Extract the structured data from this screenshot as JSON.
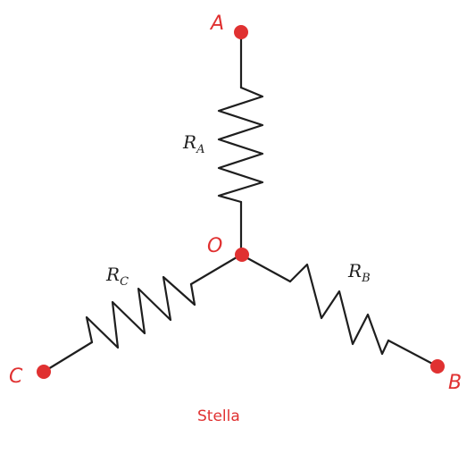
{
  "nodes": {
    "a": "A",
    "b": "B",
    "c": "C",
    "o": "O"
  },
  "resistors": {
    "a": {
      "symbol": "R",
      "sub": "A"
    },
    "b": {
      "symbol": "R",
      "sub": "B"
    },
    "c": {
      "symbol": "R",
      "sub": "C"
    }
  },
  "caption": "Stella",
  "colors": {
    "wire": "#1e1e1e",
    "node": "#e03131"
  }
}
